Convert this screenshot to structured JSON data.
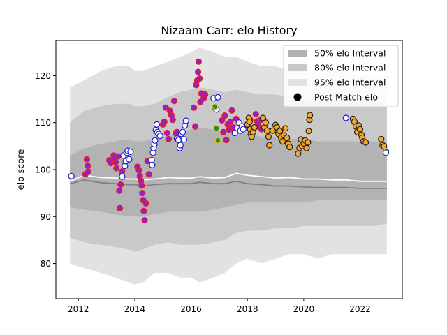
{
  "chart_data": {
    "type": "scatter",
    "title": "Nizaam Carr: elo History",
    "xlabel": "",
    "ylabel": "elo score",
    "xlim": [
      2011.2,
      2023.5
    ],
    "ylim": [
      72.5,
      127.5
    ],
    "xticks": [
      2012,
      2014,
      2016,
      2018,
      2020,
      2022
    ],
    "yticks": [
      80,
      90,
      100,
      110,
      120
    ],
    "grid": false,
    "legend_position": "top-right",
    "legend": [
      {
        "label": "50% elo Interval",
        "swatch": "#b0b0b0"
      },
      {
        "label": "80% elo Interval",
        "swatch": "#c8c8c8"
      },
      {
        "label": "95% elo Interval",
        "swatch": "#e2e2e2"
      },
      {
        "label": "Post Match elo",
        "swatch": "#000000"
      }
    ],
    "colors": {
      "band95": "#e2e2e2",
      "band80": "#c9c9c9",
      "band50": "#b3b3b3",
      "mean_line": "#ffffff",
      "median_line": "#808080",
      "purple_fill": "#9b1fc0",
      "purple_edge": "#e8201c",
      "white_fill": "#ffffff",
      "white_edge": "#1a1adb",
      "orange_fill": "#f5a623",
      "orange_edge": "#222222",
      "green_fill": "#2e8b2e",
      "green_edge": "#f5c400",
      "navy_fill": "#1f4e8c",
      "lightwhite_edge": "#2f4f6f"
    },
    "bands": {
      "x": [
        2011.7,
        2012.2,
        2012.8,
        2013.3,
        2013.8,
        2014.0,
        2014.3,
        2014.7,
        2015.2,
        2015.6,
        2016.0,
        2016.3,
        2016.8,
        2017.2,
        2017.6,
        2018.0,
        2018.5,
        2019.0,
        2019.5,
        2020.0,
        2020.5,
        2021.0,
        2021.5,
        2022.0,
        2022.5,
        2022.95
      ],
      "p95_low": [
        80,
        79,
        78,
        77,
        76,
        75.5,
        76,
        78,
        78,
        77,
        77,
        76,
        77,
        78,
        80,
        81,
        80,
        81,
        82,
        82,
        81,
        82,
        82,
        82,
        82,
        82
      ],
      "p95_high": [
        117.5,
        119,
        121,
        122,
        122,
        121,
        121,
        122,
        123,
        124,
        125,
        126,
        125,
        124,
        124,
        123,
        122,
        122,
        121,
        121,
        120,
        121,
        121,
        120,
        120,
        120
      ],
      "p80_low": [
        85.5,
        84.5,
        84,
        83.5,
        83,
        82.5,
        83,
        84,
        84.5,
        84,
        84,
        84,
        84.5,
        85,
        86.5,
        87,
        87,
        87.5,
        87.5,
        88,
        88,
        88,
        88,
        88,
        88,
        88.5
      ],
      "p80_high": [
        110,
        112.5,
        113.5,
        114,
        114,
        113.5,
        113.5,
        114,
        115.5,
        116.5,
        117,
        117.5,
        117,
        116.5,
        117,
        116.5,
        116,
        116,
        115.5,
        115.5,
        115,
        115,
        115,
        114.5,
        114.5,
        114.5
      ],
      "p50_low": [
        92,
        91.5,
        91,
        90.5,
        90,
        90,
        90,
        90.5,
        91,
        91,
        91,
        91,
        91.5,
        92,
        92.5,
        93,
        93,
        93,
        93,
        93,
        93.5,
        93.5,
        93.5,
        93.5,
        93.5,
        93.5
      ],
      "p50_high": [
        103,
        104.5,
        105.5,
        106,
        106.5,
        106,
        106,
        106.5,
        107,
        108,
        108.5,
        109,
        108.5,
        108,
        108,
        107.5,
        107,
        107,
        106.5,
        106.5,
        106,
        106,
        106,
        106,
        106,
        106
      ],
      "mean": [
        97.5,
        98.8,
        98.3,
        98.2,
        98,
        98,
        97.8,
        98,
        98.3,
        98.2,
        98.2,
        98.5,
        98.2,
        98.3,
        99.2,
        98.8,
        98.5,
        98.2,
        98.3,
        98,
        98,
        97.8,
        97.8,
        97.5,
        97.5,
        97.5
      ],
      "median": [
        97,
        97.8,
        97.2,
        97,
        96.8,
        96.8,
        96.5,
        96.8,
        97,
        97,
        97,
        97.3,
        97,
        97,
        97.5,
        97,
        96.8,
        96.5,
        96.5,
        96.3,
        96.2,
        96.2,
        96.2,
        96,
        96,
        96
      ]
    },
    "series": [
      {
        "style": "purple",
        "points": [
          [
            2012.25,
            99.0
          ],
          [
            2012.3,
            102.2
          ],
          [
            2012.33,
            100.8
          ],
          [
            2012.35,
            99.6
          ],
          [
            2013.1,
            102.0
          ],
          [
            2013.15,
            101.4
          ],
          [
            2013.2,
            101.8
          ],
          [
            2013.25,
            103.0
          ],
          [
            2013.28,
            102.4
          ],
          [
            2013.32,
            101.6
          ],
          [
            2013.35,
            100.3
          ],
          [
            2013.4,
            102.8
          ],
          [
            2013.45,
            95.5
          ],
          [
            2013.47,
            91.8
          ],
          [
            2013.5,
            96.8
          ],
          [
            2013.55,
            99.6
          ],
          [
            2014.1,
            100.6
          ],
          [
            2014.15,
            99.8
          ],
          [
            2014.18,
            98.6
          ],
          [
            2014.22,
            97.6
          ],
          [
            2014.25,
            96.6
          ],
          [
            2014.27,
            95.0
          ],
          [
            2014.3,
            93.5
          ],
          [
            2014.32,
            91.2
          ],
          [
            2014.35,
            89.2
          ],
          [
            2014.4,
            92.8
          ],
          [
            2014.45,
            101.8
          ],
          [
            2014.5,
            99.0
          ],
          [
            2015.0,
            109.6
          ],
          [
            2015.05,
            110.2
          ],
          [
            2015.1,
            113.2
          ],
          [
            2015.15,
            107.8
          ],
          [
            2015.2,
            106.5
          ],
          [
            2015.25,
            112.5
          ],
          [
            2015.3,
            111.6
          ],
          [
            2015.35,
            110.6
          ],
          [
            2015.4,
            114.6
          ],
          [
            2015.45,
            107.8
          ],
          [
            2015.5,
            108.0
          ],
          [
            2016.1,
            113.2
          ],
          [
            2016.15,
            109.2
          ],
          [
            2016.18,
            118.0
          ],
          [
            2016.22,
            119.0
          ],
          [
            2016.25,
            120.8
          ],
          [
            2016.27,
            123.0
          ],
          [
            2016.3,
            119.4
          ],
          [
            2016.33,
            114.4
          ],
          [
            2016.37,
            116.2
          ],
          [
            2016.45,
            115.2
          ],
          [
            2016.5,
            116.0
          ],
          [
            2017.1,
            110.5
          ],
          [
            2017.15,
            108.0
          ],
          [
            2017.2,
            111.5
          ],
          [
            2017.25,
            106.3
          ],
          [
            2017.3,
            109.6
          ],
          [
            2017.35,
            108.5
          ],
          [
            2017.4,
            110.2
          ],
          [
            2017.45,
            112.6
          ],
          [
            2017.5,
            109.0
          ],
          [
            2017.55,
            108.2
          ],
          [
            2017.6,
            110.8
          ],
          [
            2018.0,
            109.4
          ],
          [
            2018.1,
            110.6
          ],
          [
            2018.2,
            108.8
          ],
          [
            2018.3,
            111.8
          ],
          [
            2018.35,
            110.3
          ],
          [
            2018.4,
            109.2
          ],
          [
            2018.45,
            110.5
          ],
          [
            2018.5,
            108.6
          ]
        ]
      },
      {
        "style": "white",
        "points": [
          [
            2011.75,
            98.6
          ],
          [
            2013.55,
            98.5
          ],
          [
            2013.6,
            103.0
          ],
          [
            2013.65,
            100.8
          ],
          [
            2013.68,
            101.8
          ],
          [
            2013.72,
            103.6
          ],
          [
            2013.75,
            104.0
          ],
          [
            2013.8,
            102.2
          ],
          [
            2013.85,
            103.8
          ],
          [
            2014.6,
            102.0
          ],
          [
            2014.62,
            101.0
          ],
          [
            2014.65,
            103.6
          ],
          [
            2014.67,
            104.6
          ],
          [
            2014.7,
            105.4
          ],
          [
            2014.72,
            106.2
          ],
          [
            2014.75,
            108.4
          ],
          [
            2014.78,
            109.6
          ],
          [
            2014.8,
            108.0
          ],
          [
            2014.85,
            107.6
          ],
          [
            2014.9,
            107.2
          ],
          [
            2015.5,
            106.6
          ],
          [
            2015.55,
            106.3
          ],
          [
            2015.6,
            104.6
          ],
          [
            2015.62,
            105.2
          ],
          [
            2015.65,
            107.6
          ],
          [
            2015.7,
            108.0
          ],
          [
            2015.75,
            106.4
          ],
          [
            2015.78,
            109.4
          ],
          [
            2015.82,
            110.4
          ],
          [
            2016.8,
            115.2
          ],
          [
            2016.85,
            113.2
          ],
          [
            2016.9,
            112.8
          ],
          [
            2016.95,
            115.4
          ],
          [
            2017.55,
            107.8
          ],
          [
            2017.65,
            108.8
          ],
          [
            2017.7,
            110.0
          ],
          [
            2017.75,
            108.3
          ],
          [
            2017.8,
            109.2
          ],
          [
            2017.85,
            108.6
          ],
          [
            2021.5,
            111.0
          ]
        ]
      },
      {
        "style": "orange",
        "points": [
          [
            2018.0,
            109.6
          ],
          [
            2018.05,
            111.0
          ],
          [
            2018.08,
            110.2
          ],
          [
            2018.1,
            108.6
          ],
          [
            2018.12,
            107.6
          ],
          [
            2018.15,
            107.0
          ],
          [
            2018.2,
            108.0
          ],
          [
            2018.25,
            109.0
          ],
          [
            2018.55,
            111.0
          ],
          [
            2018.6,
            109.0
          ],
          [
            2018.65,
            110.0
          ],
          [
            2018.7,
            108.3
          ],
          [
            2018.75,
            107.0
          ],
          [
            2018.78,
            105.2
          ],
          [
            2018.9,
            108.3
          ],
          [
            2019.0,
            109.5
          ],
          [
            2019.05,
            109.0
          ],
          [
            2019.1,
            107.6
          ],
          [
            2019.15,
            108.2
          ],
          [
            2019.2,
            106.8
          ],
          [
            2019.25,
            106.0
          ],
          [
            2019.3,
            107.3
          ],
          [
            2019.35,
            108.8
          ],
          [
            2019.4,
            106.8
          ],
          [
            2019.45,
            105.5
          ],
          [
            2019.5,
            104.8
          ],
          [
            2019.8,
            103.4
          ],
          [
            2019.85,
            104.6
          ],
          [
            2019.9,
            106.4
          ],
          [
            2019.95,
            105.0
          ],
          [
            2020.0,
            105.6
          ],
          [
            2020.05,
            106.2
          ],
          [
            2020.1,
            104.6
          ],
          [
            2020.15,
            105.8
          ],
          [
            2020.18,
            108.2
          ],
          [
            2020.2,
            110.6
          ],
          [
            2020.22,
            111.6
          ],
          [
            2021.75,
            110.8
          ],
          [
            2021.8,
            110.2
          ],
          [
            2021.85,
            109.2
          ],
          [
            2021.9,
            108.0
          ],
          [
            2021.95,
            109.4
          ],
          [
            2022.0,
            108.6
          ],
          [
            2022.05,
            107.4
          ],
          [
            2022.08,
            106.8
          ],
          [
            2022.12,
            106.0
          ],
          [
            2022.2,
            105.8
          ],
          [
            2022.75,
            106.5
          ],
          [
            2022.8,
            105.2
          ],
          [
            2022.85,
            104.9
          ]
        ]
      },
      {
        "style": "green",
        "points": [
          [
            2016.85,
            113.4
          ],
          [
            2016.9,
            108.8
          ],
          [
            2016.95,
            106.2
          ]
        ]
      },
      {
        "style": "navy",
        "points": [
          [
            2022.95,
            103.9
          ]
        ]
      },
      {
        "style": "lightwhite",
        "points": [
          [
            2022.92,
            103.6
          ]
        ]
      }
    ]
  }
}
